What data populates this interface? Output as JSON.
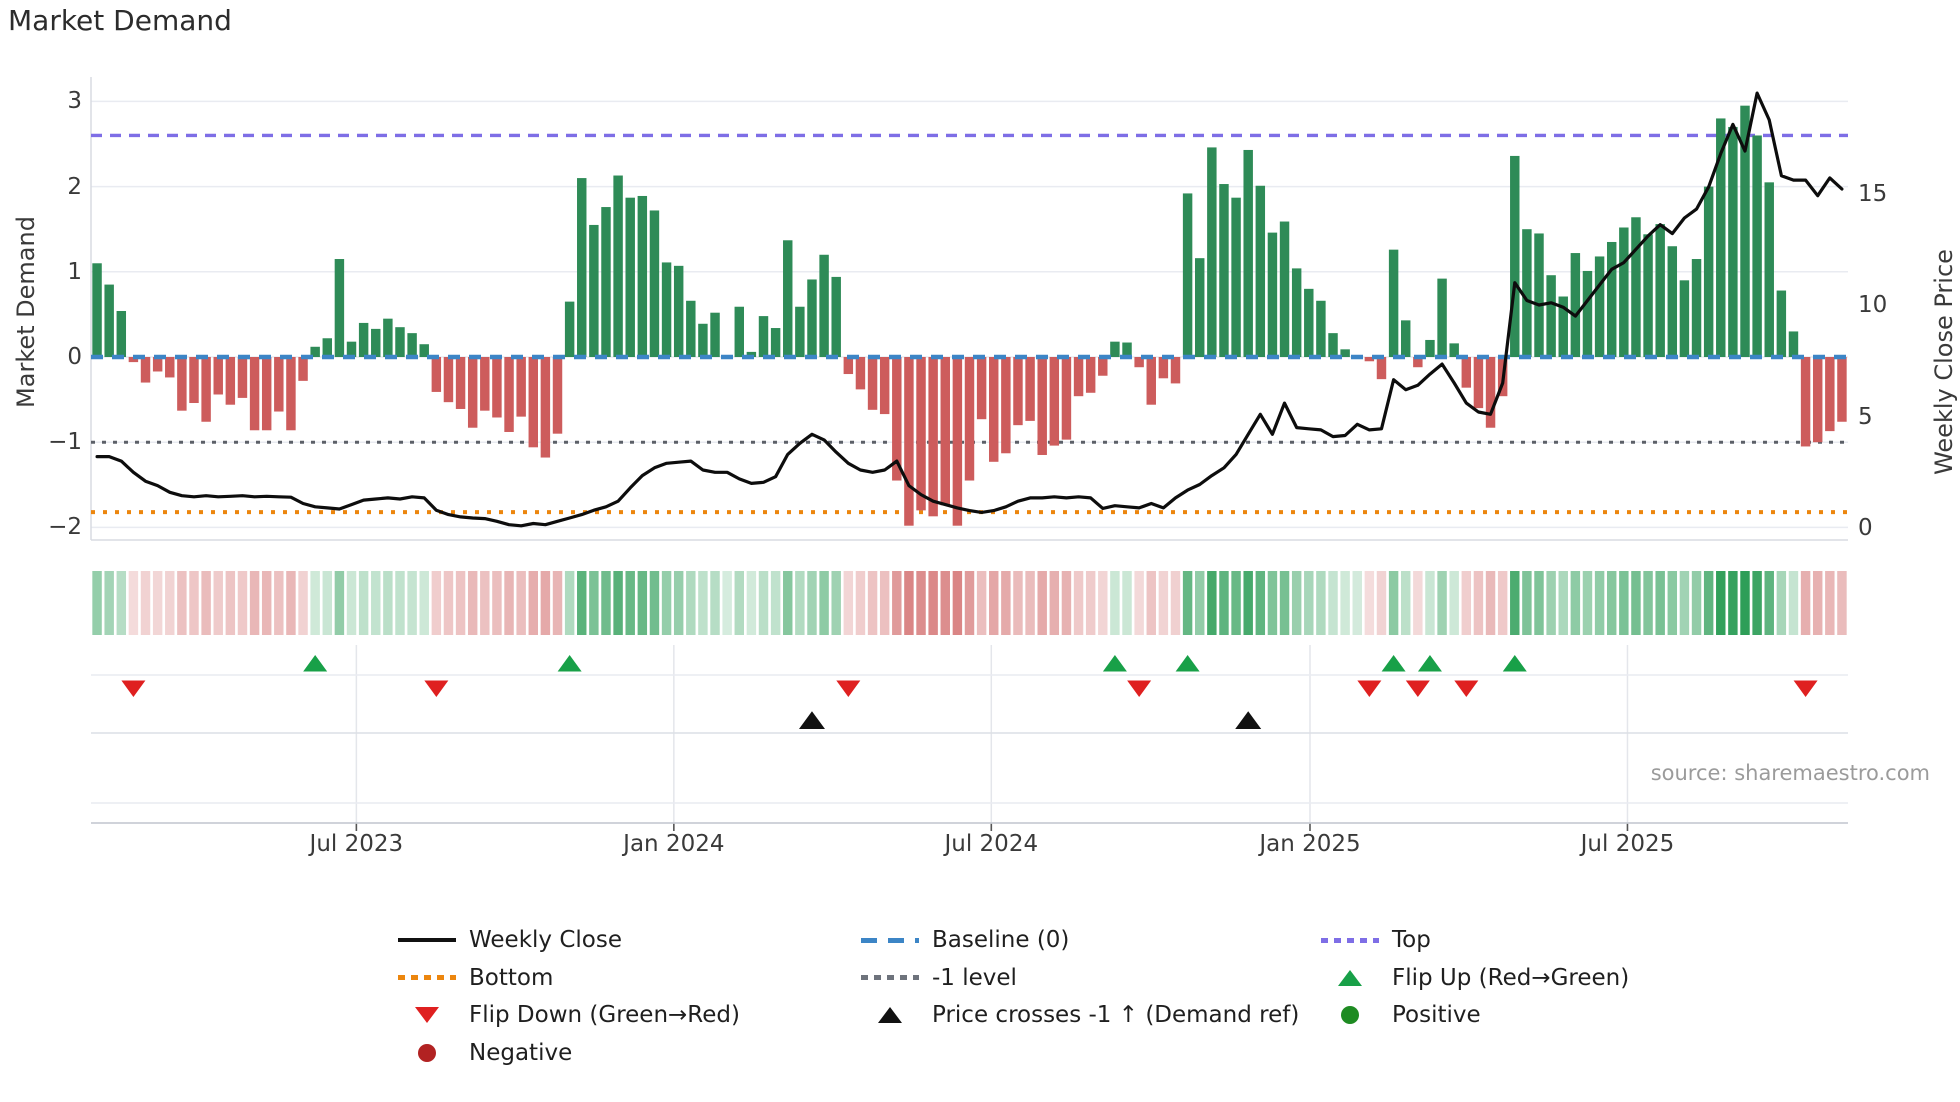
{
  "title": "Market Demand",
  "source_text": "source: sharemaestro.com",
  "axes": {
    "left_label": "Market Demand",
    "right_label": "Weekly Close Price",
    "left_ticks": [
      {
        "label": "3",
        "value": 3
      },
      {
        "label": "2",
        "value": 2
      },
      {
        "label": "1",
        "value": 1
      },
      {
        "label": "0",
        "value": 0
      },
      {
        "label": "−1",
        "value": -1
      },
      {
        "label": "−2",
        "value": -2
      }
    ],
    "right_ticks": [
      {
        "label": "15",
        "value": 15
      },
      {
        "label": "10",
        "value": 10
      },
      {
        "label": "5",
        "value": 5
      },
      {
        "label": "0",
        "value": 0
      }
    ],
    "x_ticks": [
      {
        "label": "Jul 2023",
        "week": 21.4
      },
      {
        "label": "Jan 2024",
        "week": 47.6
      },
      {
        "label": "Jul 2024",
        "week": 73.8
      },
      {
        "label": "Jan 2025",
        "week": 100.1
      },
      {
        "label": "Jul 2025",
        "week": 126.3
      }
    ],
    "ylim_left": [
      -2.3,
      3.3
    ],
    "ylim_right": [
      0,
      20.2
    ],
    "grid": "horizontal in main chart, vertical month gridlines in marker and source panels"
  },
  "chart_data": {
    "type": "bar",
    "title": "Market Demand",
    "xlabel": "",
    "ylabel": "Market Demand",
    "ylabel_right": "Weekly Close Price",
    "x_unit": "week",
    "x_range_weeks": 145,
    "series": [
      {
        "name": "Market Demand",
        "type": "bar",
        "axis": "left",
        "values": [
          1.1,
          0.85,
          0.54,
          -0.06,
          -0.3,
          -0.17,
          -0.24,
          -0.63,
          -0.54,
          -0.76,
          -0.44,
          -0.56,
          -0.48,
          -0.86,
          -0.86,
          -0.64,
          -0.86,
          -0.28,
          0.12,
          0.22,
          1.15,
          0.18,
          0.4,
          0.33,
          0.45,
          0.35,
          0.28,
          0.15,
          -0.41,
          -0.53,
          -0.61,
          -0.83,
          -0.63,
          -0.71,
          -0.88,
          -0.7,
          -1.06,
          -1.18,
          -0.9,
          0.65,
          2.1,
          1.55,
          1.76,
          2.13,
          1.87,
          1.89,
          1.72,
          1.11,
          1.07,
          0.66,
          0.39,
          0.52,
          0.01,
          0.59,
          0.06,
          0.48,
          0.34,
          1.37,
          0.59,
          0.91,
          1.2,
          0.94,
          -0.2,
          -0.38,
          -0.62,
          -0.67,
          -1.45,
          -1.98,
          -1.8,
          -1.87,
          -1.74,
          -1.98,
          -1.45,
          -0.73,
          -1.23,
          -1.13,
          -0.8,
          -0.75,
          -1.15,
          -1.04,
          -0.97,
          -0.46,
          -0.42,
          -0.22,
          0.18,
          0.17,
          -0.12,
          -0.56,
          -0.25,
          -0.31,
          1.92,
          1.16,
          2.46,
          2.03,
          1.87,
          2.43,
          2.01,
          1.46,
          1.59,
          1.04,
          0.8,
          0.66,
          0.28,
          0.09,
          0.02,
          -0.05,
          -0.26,
          1.26,
          0.43,
          -0.12,
          0.2,
          0.92,
          0.16,
          -0.36,
          -0.6,
          -0.83,
          -0.46,
          2.36,
          1.5,
          1.45,
          0.96,
          0.71,
          1.22,
          1.01,
          1.18,
          1.35,
          1.52,
          1.64,
          1.44,
          1.56,
          1.3,
          0.9,
          1.15,
          2.0,
          2.8,
          2.7,
          2.95,
          2.6,
          2.05,
          0.78,
          0.3,
          -1.05,
          -1.0,
          -0.87,
          -0.76
        ]
      },
      {
        "name": "Weekly Close",
        "type": "line",
        "axis": "right",
        "values": [
          3.2,
          3.2,
          3.0,
          2.5,
          2.1,
          1.9,
          1.6,
          1.45,
          1.4,
          1.45,
          1.4,
          1.42,
          1.45,
          1.4,
          1.42,
          1.4,
          1.38,
          1.1,
          0.95,
          0.9,
          0.85,
          1.05,
          1.25,
          1.3,
          1.35,
          1.3,
          1.4,
          1.35,
          0.8,
          0.6,
          0.5,
          0.45,
          0.42,
          0.3,
          0.15,
          0.1,
          0.2,
          0.15,
          0.3,
          0.45,
          0.6,
          0.8,
          0.95,
          1.2,
          1.8,
          2.35,
          2.7,
          2.9,
          2.95,
          3.0,
          2.6,
          2.5,
          2.5,
          2.2,
          2.0,
          2.05,
          2.3,
          3.3,
          3.8,
          4.2,
          3.95,
          3.4,
          2.9,
          2.6,
          2.5,
          2.6,
          3.0,
          1.9,
          1.5,
          1.2,
          1.05,
          0.9,
          0.78,
          0.7,
          0.78,
          0.95,
          1.2,
          1.35,
          1.35,
          1.4,
          1.35,
          1.4,
          1.35,
          0.88,
          1.0,
          0.95,
          0.9,
          1.1,
          0.9,
          1.35,
          1.7,
          1.95,
          2.35,
          2.7,
          3.3,
          4.2,
          5.1,
          4.2,
          5.6,
          4.5,
          4.45,
          4.4,
          4.1,
          4.15,
          4.65,
          4.4,
          4.45,
          6.65,
          6.2,
          6.4,
          6.9,
          7.35,
          6.5,
          5.6,
          5.2,
          5.1,
          6.5,
          11.0,
          10.2,
          10.0,
          10.1,
          9.9,
          9.5,
          10.2,
          10.9,
          11.6,
          11.9,
          12.5,
          13.1,
          13.6,
          13.2,
          13.9,
          14.3,
          15.3,
          16.8,
          18.1,
          16.9,
          19.5,
          18.3,
          15.8,
          15.6,
          15.6,
          14.9,
          15.7,
          15.2
        ]
      }
    ],
    "heatmap_strip": "same weekly demand values rendered as green/red intensity columns",
    "ref_lines": {
      "top": {
        "label": "Top",
        "value": 2.6
      },
      "baseline": {
        "label": "Baseline (0)",
        "value": 0
      },
      "minus_one": {
        "label": "-1 level",
        "value": -1
      },
      "bottom": {
        "label": "Bottom",
        "value": -1.82
      }
    },
    "markers": {
      "flip_up_weeks": [
        18,
        39,
        84,
        90,
        107,
        110,
        117
      ],
      "flip_down_weeks": [
        3,
        28,
        62,
        86,
        105,
        109,
        113,
        141
      ],
      "price_cross_weeks": [
        59,
        95
      ]
    },
    "legend_position": "bottom"
  },
  "legend": {
    "columns": [
      {
        "items": [
          {
            "swatch": "solid-line",
            "color": "#111111",
            "label": "Weekly Close"
          },
          {
            "swatch": "dotted-line",
            "color": "#ec860e",
            "label": "Bottom"
          },
          {
            "swatch": "triangle-down",
            "color": "#df2020",
            "label": "Flip Down (Green→Red)"
          },
          {
            "swatch": "circle",
            "color": "#b22222",
            "label": "Negative"
          }
        ]
      },
      {
        "items": [
          {
            "swatch": "dashed-line",
            "color": "#3c85c6",
            "label": "Baseline (0)"
          },
          {
            "swatch": "dotted-line",
            "color": "#6e737c",
            "label": "-1 level"
          },
          {
            "swatch": "triangle-up",
            "color": "#111111",
            "label": "Price crosses -1 ↑ (Demand ref)"
          }
        ]
      },
      {
        "items": [
          {
            "swatch": "dotted-line",
            "color": "#7e6ee6",
            "label": "Top"
          },
          {
            "swatch": "triangle-up",
            "color": "#18a048",
            "label": "Flip Up (Red→Green)"
          },
          {
            "swatch": "circle",
            "color": "#1e8b22",
            "label": "Positive"
          }
        ]
      }
    ]
  },
  "colors": {
    "bar_positive": "#2e8b57",
    "bar_negative": "#cd5c5c",
    "heat_positive": "#2e9e58",
    "heat_negative": "#cd5c5c",
    "price_line": "#0d0d0d",
    "baseline": "#3c85c6",
    "top_line": "#7e6ee6",
    "bottom_line": "#ec860e",
    "minus_one_line": "#5c6068",
    "flip_up": "#18a048",
    "flip_down": "#df2020",
    "price_cross": "#111111",
    "grid": "#e9ebf1",
    "spine": "#c9cdd4"
  }
}
